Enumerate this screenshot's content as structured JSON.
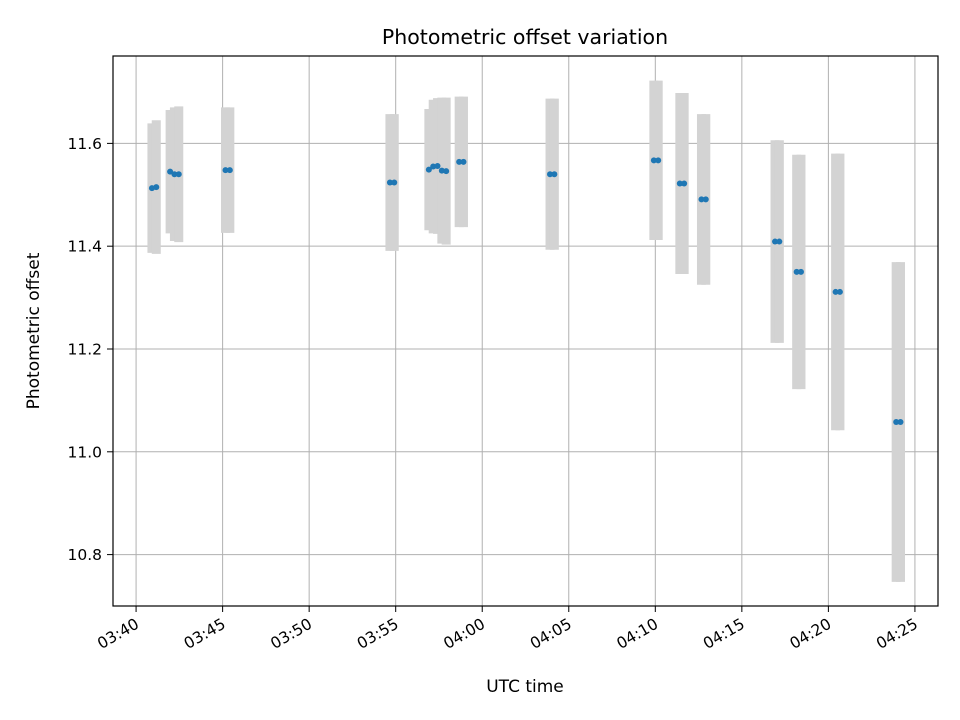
{
  "chart_data": {
    "type": "scatter",
    "title": "Photometric offset variation",
    "xlabel": "UTC time",
    "ylabel": "Photometric offset",
    "x_unit": "UTC time (HH:MM)",
    "xlim": [
      "03:38:40",
      "04:26:20"
    ],
    "ylim": [
      10.7,
      11.77
    ],
    "grid": true,
    "x_ticks": [
      "03:40",
      "03:45",
      "03:50",
      "03:55",
      "04:00",
      "04:05",
      "04:10",
      "04:15",
      "04:20",
      "04:25"
    ],
    "y_ticks": [
      "10.8",
      "11.0",
      "11.2",
      "11.4",
      "11.6"
    ],
    "colors": {
      "marker": "#1f77b4",
      "errorbar": "#d3d3d3",
      "grid": "#b0b0b0"
    },
    "points": [
      {
        "x": "03:40:55",
        "y": 11.513,
        "yerr": 0.126
      },
      {
        "x": "03:41:10",
        "y": 11.515,
        "yerr": 0.13
      },
      {
        "x": "03:41:58",
        "y": 11.545,
        "yerr": 0.12
      },
      {
        "x": "03:42:13",
        "y": 11.54,
        "yerr": 0.13
      },
      {
        "x": "03:42:28",
        "y": 11.54,
        "yerr": 0.132
      },
      {
        "x": "03:45:10",
        "y": 11.548,
        "yerr": 0.122
      },
      {
        "x": "03:45:25",
        "y": 11.548,
        "yerr": 0.122
      },
      {
        "x": "03:54:40",
        "y": 11.524,
        "yerr": 0.133
      },
      {
        "x": "03:54:55",
        "y": 11.524,
        "yerr": 0.133
      },
      {
        "x": "03:56:55",
        "y": 11.549,
        "yerr": 0.118
      },
      {
        "x": "03:57:10",
        "y": 11.555,
        "yerr": 0.13
      },
      {
        "x": "03:57:25",
        "y": 11.556,
        "yerr": 0.132
      },
      {
        "x": "03:57:40",
        "y": 11.547,
        "yerr": 0.142
      },
      {
        "x": "03:57:55",
        "y": 11.546,
        "yerr": 0.143
      },
      {
        "x": "03:58:40",
        "y": 11.564,
        "yerr": 0.127
      },
      {
        "x": "03:58:55",
        "y": 11.564,
        "yerr": 0.127
      },
      {
        "x": "04:03:55",
        "y": 11.54,
        "yerr": 0.147
      },
      {
        "x": "04:04:10",
        "y": 11.54,
        "yerr": 0.147
      },
      {
        "x": "04:09:55",
        "y": 11.567,
        "yerr": 0.155
      },
      {
        "x": "04:10:10",
        "y": 11.567,
        "yerr": 0.155
      },
      {
        "x": "04:11:25",
        "y": 11.522,
        "yerr": 0.176
      },
      {
        "x": "04:11:40",
        "y": 11.522,
        "yerr": 0.176
      },
      {
        "x": "04:12:40",
        "y": 11.491,
        "yerr": 0.166
      },
      {
        "x": "04:12:55",
        "y": 11.491,
        "yerr": 0.166
      },
      {
        "x": "04:16:55",
        "y": 11.409,
        "yerr": 0.197
      },
      {
        "x": "04:17:10",
        "y": 11.409,
        "yerr": 0.197
      },
      {
        "x": "04:18:10",
        "y": 11.35,
        "yerr": 0.228
      },
      {
        "x": "04:18:25",
        "y": 11.35,
        "yerr": 0.228
      },
      {
        "x": "04:20:25",
        "y": 11.311,
        "yerr": 0.269
      },
      {
        "x": "04:20:40",
        "y": 11.311,
        "yerr": 0.269
      },
      {
        "x": "04:23:55",
        "y": 11.058,
        "yerr": 0.311
      },
      {
        "x": "04:24:10",
        "y": 11.058,
        "yerr": 0.311
      }
    ]
  }
}
